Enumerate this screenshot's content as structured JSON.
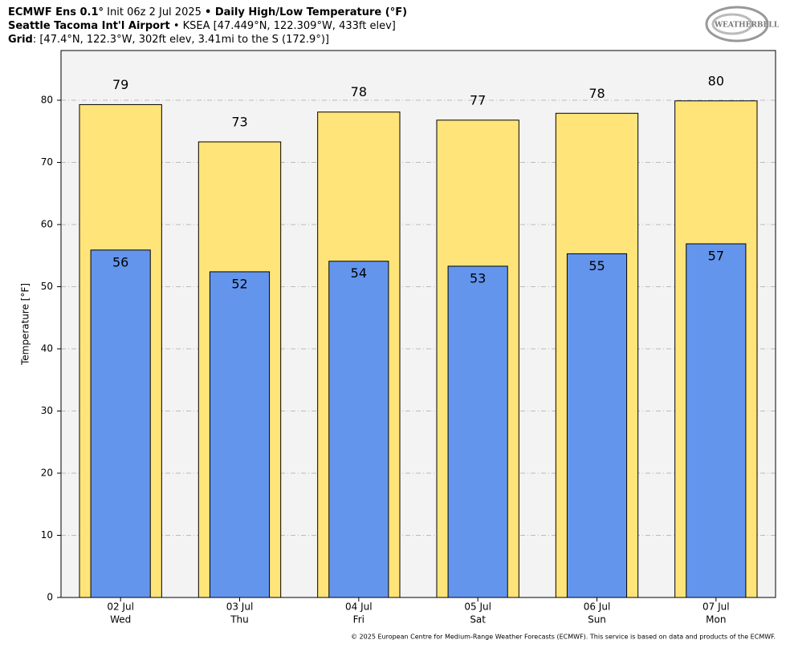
{
  "chart_data": {
    "type": "bar",
    "title": {
      "model": "ECMWF Ens 0.1°",
      "init": "Init 06z 2 Jul 2025",
      "product": "• Daily High/Low Temperature (°F)"
    },
    "location": {
      "name": "Seattle Tacoma Int'l Airport",
      "detail": "• KSEA [47.449°N, 122.309°W, 433ft elev]"
    },
    "grid_info": {
      "label": "Grid",
      "detail": ": [47.4°N, 122.3°W, 302ft elev, 3.41mi to the S (172.9°)]"
    },
    "logo": "WEATHERBELL",
    "ylabel": "Temperature [°F]",
    "categories": [
      "02 Jul",
      "03 Jul",
      "04 Jul",
      "05 Jul",
      "06 Jul",
      "07 Jul"
    ],
    "weekdays": [
      "Wed",
      "Thu",
      "Fri",
      "Sat",
      "Sun",
      "Mon"
    ],
    "series": [
      {
        "name": "High",
        "color": "#ffe47a",
        "values": [
          79.3,
          73.3,
          78.1,
          76.8,
          77.9,
          79.9
        ],
        "value_labels": [
          "79",
          "73",
          "78",
          "77",
          "78",
          "80"
        ]
      },
      {
        "name": "Low",
        "color": "#6495ed",
        "values": [
          55.9,
          52.4,
          54.1,
          53.3,
          55.3,
          56.9
        ],
        "value_labels": [
          "56",
          "52",
          "54",
          "53",
          "55",
          "57"
        ]
      }
    ],
    "ylim": [
      0,
      88
    ],
    "yticks": [
      0,
      10,
      20,
      30,
      40,
      50,
      60,
      70,
      80
    ],
    "grid": true,
    "footer": "© 2025 European Centre for Medium-Range Weather Forecasts (ECMWF). This service is based on data and products of the ECMWF."
  }
}
